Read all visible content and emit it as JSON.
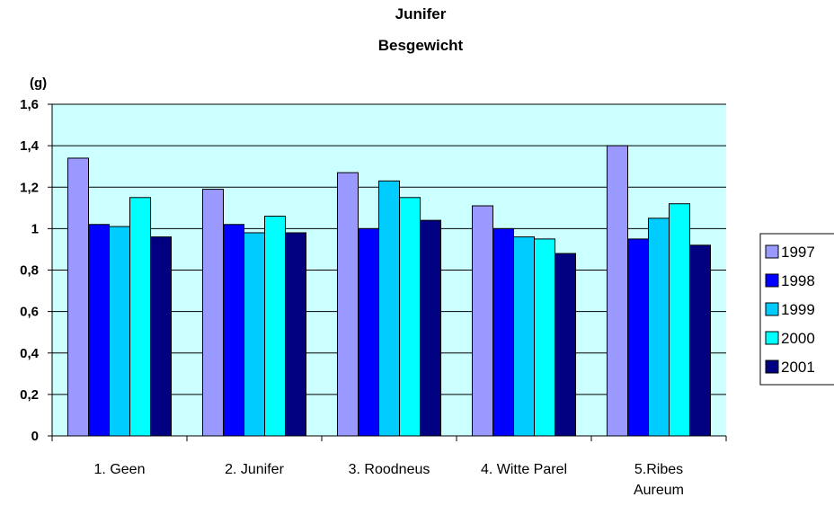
{
  "chart_data": {
    "type": "bar",
    "title": "Junifer",
    "subtitle": "Besgewicht",
    "ylabel": "(g)",
    "xlabel": "",
    "ylim": [
      0,
      1.6
    ],
    "ytick_step": 0.2,
    "yticks": [
      "0",
      "0,2",
      "0,4",
      "0,6",
      "0,8",
      "1",
      "1,2",
      "1,4",
      "1,6"
    ],
    "grid": true,
    "legend_position": "right",
    "plot_background": "#ccffff",
    "categories": [
      [
        "1. Geen"
      ],
      [
        "2. Junifer"
      ],
      [
        "3. Roodneus"
      ],
      [
        "4. Witte Parel"
      ],
      [
        "5.Ribes",
        "Aureum"
      ]
    ],
    "series": [
      {
        "name": "1997",
        "color": "#9999ff",
        "values": [
          1.34,
          1.19,
          1.27,
          1.11,
          1.4
        ]
      },
      {
        "name": "1998",
        "color": "#0000ff",
        "values": [
          1.02,
          1.02,
          1.0,
          1.0,
          0.95
        ]
      },
      {
        "name": "1999",
        "color": "#00ccff",
        "values": [
          1.01,
          0.98,
          1.23,
          0.96,
          1.05
        ]
      },
      {
        "name": "2000",
        "color": "#00ffff",
        "values": [
          1.15,
          1.06,
          1.15,
          0.95,
          1.12
        ]
      },
      {
        "name": "2001",
        "color": "#000080",
        "values": [
          0.96,
          0.98,
          1.04,
          0.88,
          0.92
        ]
      }
    ]
  }
}
